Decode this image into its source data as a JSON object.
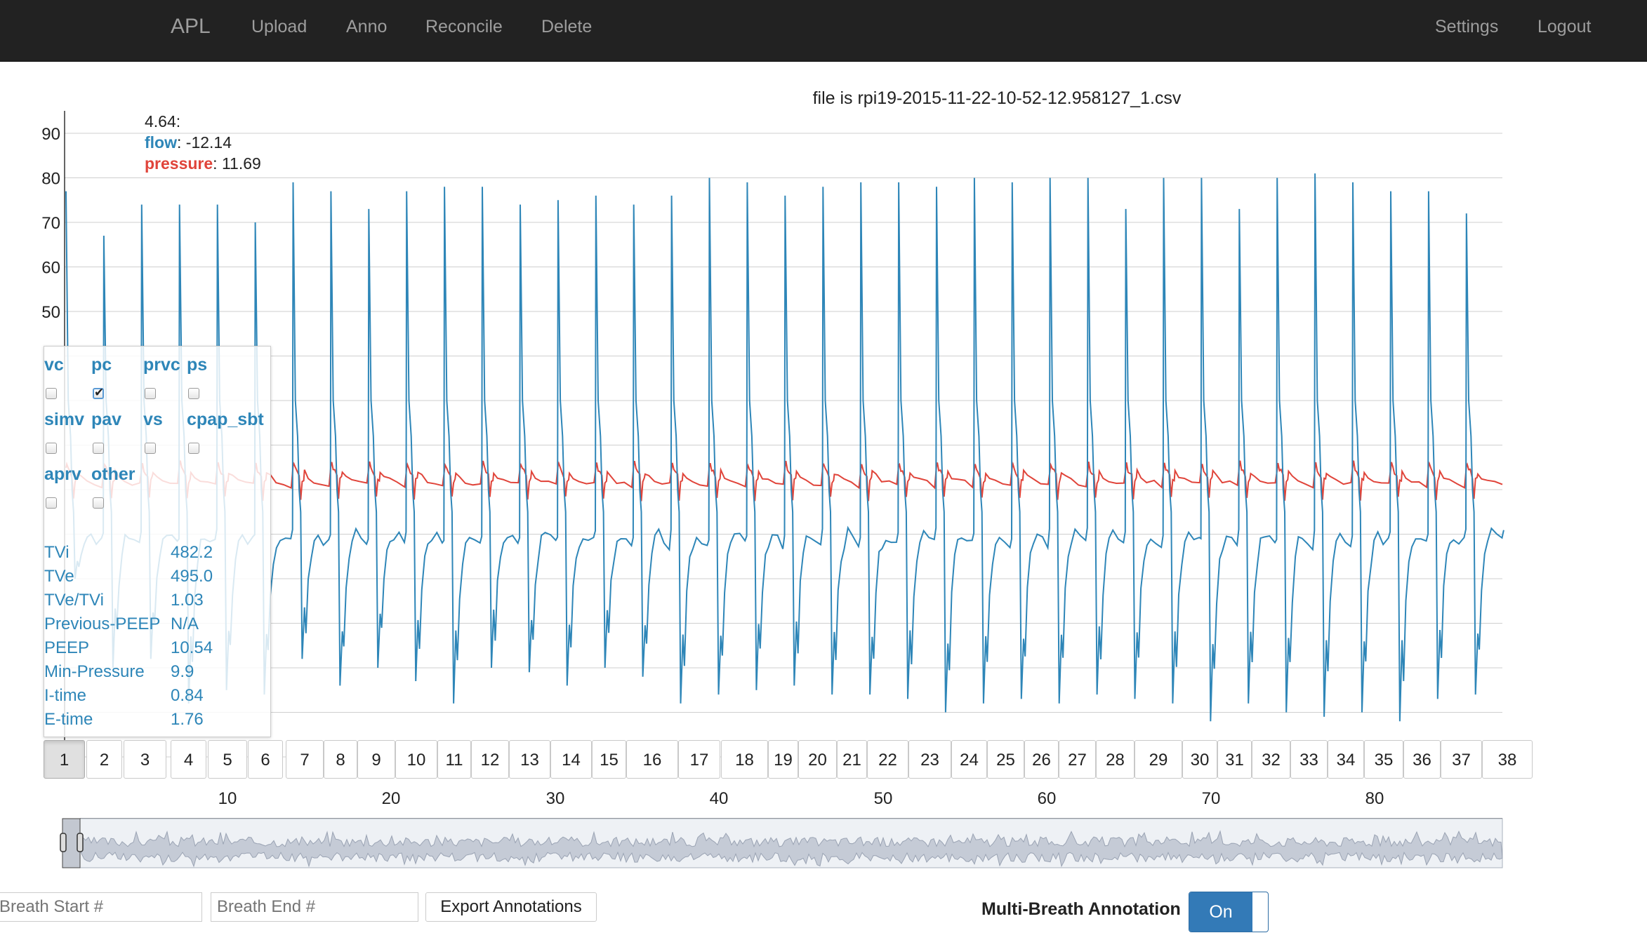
{
  "navbar": {
    "brand": "APL",
    "links": [
      "Upload",
      "Anno",
      "Reconcile",
      "Delete"
    ],
    "right_links": [
      "Settings",
      "Logout"
    ]
  },
  "file_title": "file is rpi19-2015-11-22-10-52-12.958127_1.csv",
  "legend": {
    "x_value": "4.64:",
    "flow_label": "flow",
    "flow_value": ": -12.14",
    "pressure_label": "pressure",
    "pressure_value": ": 11.69"
  },
  "colors": {
    "flow": "#2e86b8",
    "pressure": "#e0443a",
    "navbar": "#222222",
    "toggle_on": "#337ab7"
  },
  "modes": [
    {
      "label": "vc",
      "checked": false
    },
    {
      "label": "pc",
      "checked": true
    },
    {
      "label": "prvc",
      "checked": false
    },
    {
      "label": "ps",
      "checked": false
    },
    {
      "label": "simv",
      "checked": false
    },
    {
      "label": "pav",
      "checked": false
    },
    {
      "label": "vs",
      "checked": false
    },
    {
      "label": "cpap_sbt",
      "checked": false
    },
    {
      "label": "aprv",
      "checked": false
    },
    {
      "label": "other",
      "checked": false
    }
  ],
  "stats": [
    {
      "key": "TVi",
      "value": "482.2"
    },
    {
      "key": "TVe",
      "value": "495.0"
    },
    {
      "key": "TVe/TVi",
      "value": "1.03"
    },
    {
      "key": "Previous-PEEP",
      "value": "N/A"
    },
    {
      "key": "PEEP",
      "value": "10.54"
    },
    {
      "key": "Min-Pressure",
      "value": "9.9"
    },
    {
      "key": "I-time",
      "value": "0.84"
    },
    {
      "key": "E-time",
      "value": "1.76"
    }
  ],
  "breath_buttons": [
    "1",
    "2",
    "3",
    "4",
    "5",
    "6",
    "7",
    "8",
    "9",
    "10",
    "11",
    "12",
    "13",
    "14",
    "15",
    "16",
    "17",
    "18",
    "19",
    "20",
    "21",
    "22",
    "23",
    "24",
    "25",
    "26",
    "27",
    "28",
    "29",
    "30",
    "31",
    "32",
    "33",
    "34",
    "35",
    "36",
    "37",
    "38"
  ],
  "active_breath": "1",
  "inputs": {
    "breath_start_placeholder": "Breath Start #",
    "breath_end_placeholder": "Breath End #",
    "export_label": "Export Annotations"
  },
  "multi_breath": {
    "label": "Multi-Breath Annotation",
    "toggle": "On"
  },
  "chart_data": {
    "type": "line",
    "title": "file is rpi19-2015-11-22-10-52-12.958127_1.csv",
    "ylim": [
      -50,
      90
    ],
    "y_ticks": [
      "90",
      "80",
      "70",
      "60",
      "50"
    ],
    "brush_x_ticks": [
      "10",
      "20",
      "30",
      "40",
      "50",
      "60",
      "70",
      "80"
    ],
    "series": [
      {
        "name": "flow",
        "color": "#2e86b8",
        "description": "periodic waveform, 38 breaths, peaks ~70-80, troughs ~-30 to -40"
      },
      {
        "name": "pressure",
        "color": "#e0443a",
        "description": "sawtooth ~8-16, baseline ~10"
      }
    ],
    "peak_values": [
      77,
      67,
      74,
      74,
      74,
      70,
      79,
      77,
      73,
      77,
      78,
      78,
      74,
      75,
      76,
      74,
      76,
      80,
      79,
      76,
      78,
      79,
      79,
      78,
      80,
      79,
      80,
      80,
      73,
      80,
      80,
      73,
      80,
      81,
      79,
      77,
      77,
      72
    ],
    "trough_values": [
      -10,
      -30,
      -28,
      -38,
      -35,
      -36,
      -28,
      -34,
      -30,
      -33,
      -38,
      -30,
      -31,
      -34,
      -30,
      -32,
      -38,
      -36,
      -35,
      -34,
      -36,
      -36,
      -37,
      -40,
      -38,
      -37,
      -38,
      -36,
      -37,
      -38,
      -42,
      -38,
      -40,
      -41,
      -40,
      -42,
      -37,
      -36
    ],
    "pressure_baseline": 10,
    "pressure_peak": 16
  }
}
